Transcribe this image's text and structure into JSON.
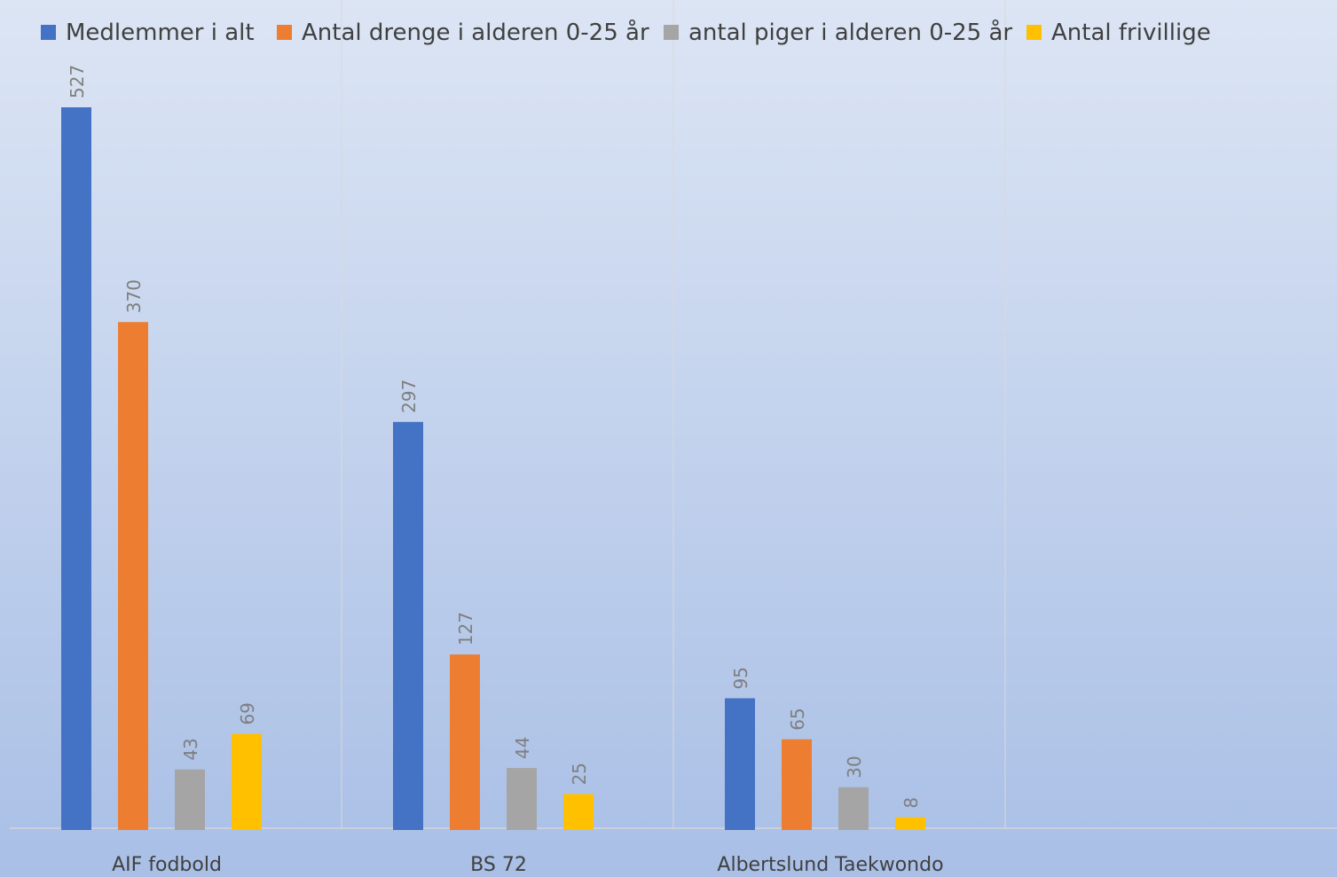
{
  "chart_data": {
    "type": "bar",
    "title": "",
    "xlabel": "",
    "ylabel": "",
    "categories": [
      "AIF fodbold",
      "BS 72",
      "Albertslund Taekwondo",
      ""
    ],
    "series": [
      {
        "name": "Medlemmer i alt",
        "color": "#4472C4",
        "values": [
          527,
          297,
          95,
          null
        ]
      },
      {
        "name": "Antal drenge i alderen 0-25 år",
        "color": "#ED7D31",
        "values": [
          370,
          127,
          65,
          null
        ]
      },
      {
        "name": "antal piger i alderen 0-25 år",
        "color": "#A5A5A5",
        "values": [
          43,
          44,
          30,
          null
        ]
      },
      {
        "name": "Antal frivillige",
        "color": "#FFC000",
        "values": [
          69,
          25,
          8,
          null
        ]
      }
    ],
    "ylim": [
      0,
      580
    ],
    "grid": "vertical-category-separators",
    "legend_position": "top",
    "data_labels": "rotated-above-bars"
  },
  "colors": {
    "background_top": "#DCE5F4",
    "background_bottom": "#A9BFE6",
    "gridline": "#D9D9D9"
  }
}
